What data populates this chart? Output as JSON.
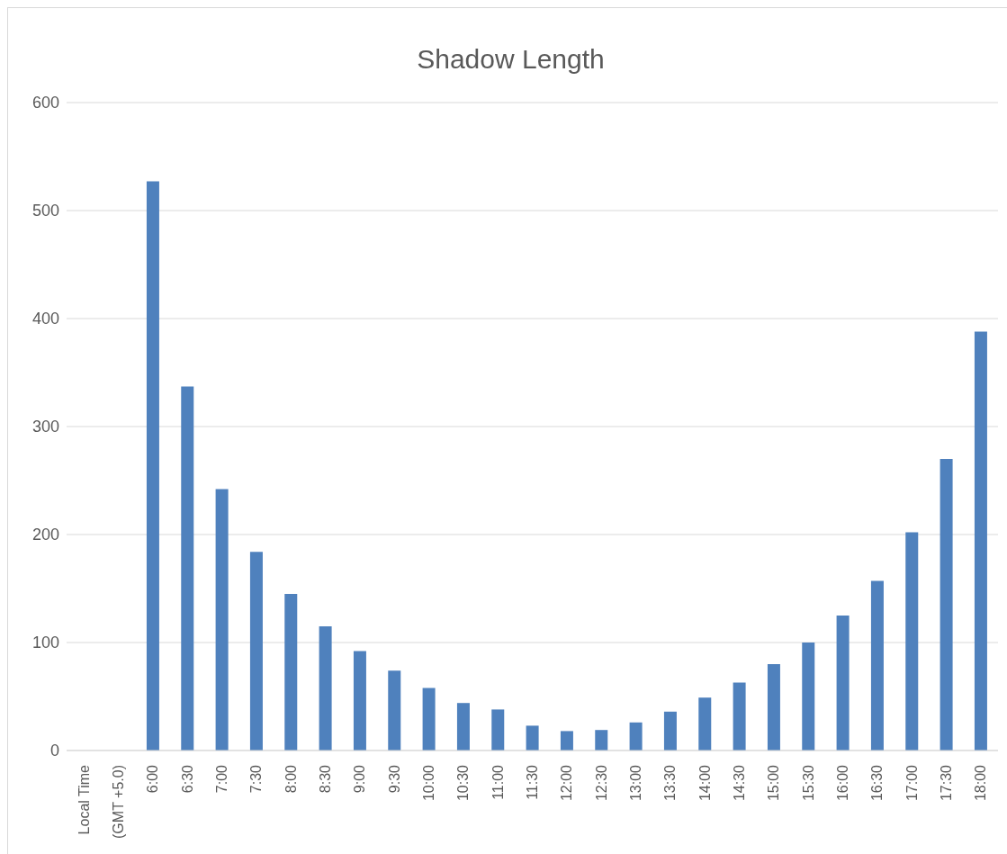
{
  "chart_data": {
    "type": "bar",
    "title": "Shadow Length",
    "categories": [
      "Local Time",
      "(GMT +5.0)",
      "6:00",
      "6:30",
      "7:00",
      "7:30",
      "8:00",
      "8:30",
      "9:00",
      "9:30",
      "10:00",
      "10:30",
      "11:00",
      "11:30",
      "12:00",
      "12:30",
      "13:00",
      "13:30",
      "14:00",
      "14:30",
      "15:00",
      "15:30",
      "16:00",
      "16:30",
      "17:00",
      "17:30",
      "18:00"
    ],
    "values": [
      null,
      null,
      527,
      337,
      242,
      184,
      145,
      115,
      92,
      74,
      58,
      44,
      38,
      23,
      18,
      19,
      26,
      36,
      49,
      63,
      80,
      100,
      125,
      157,
      202,
      270,
      388
    ],
    "color": "#4f81bd",
    "ylim": [
      0,
      600
    ],
    "yticks": [
      0,
      100,
      200,
      300,
      400,
      500,
      600
    ],
    "grid": "y"
  }
}
